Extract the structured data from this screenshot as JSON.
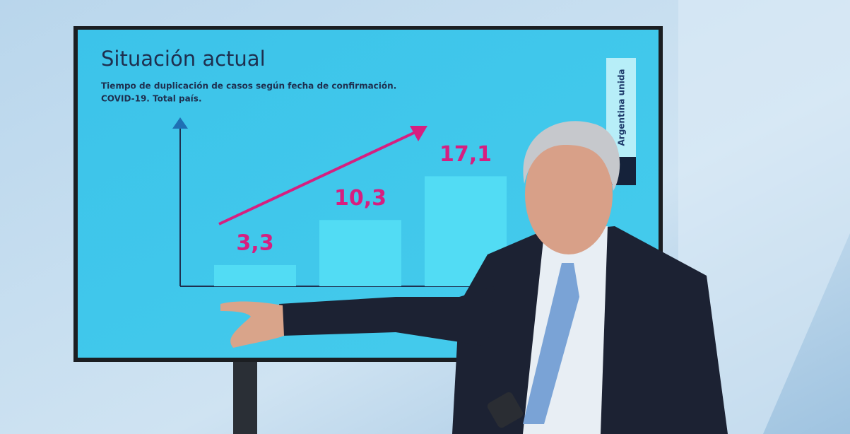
{
  "chart_data": {
    "type": "bar",
    "title": "Situación actual",
    "subtitle": [
      "Tiempo de duplicación de casos según fecha de confirmación.",
      "COVID-19. Total país."
    ],
    "categories": [
      null,
      null,
      null
    ],
    "values": [
      3.3,
      10.3,
      17.1
    ],
    "value_labels": [
      "3,3",
      "10,3",
      "17,1"
    ],
    "color": "#52dcf4",
    "label_color": "#d61f80"
  },
  "banner": {
    "text": "Argentina unida"
  }
}
